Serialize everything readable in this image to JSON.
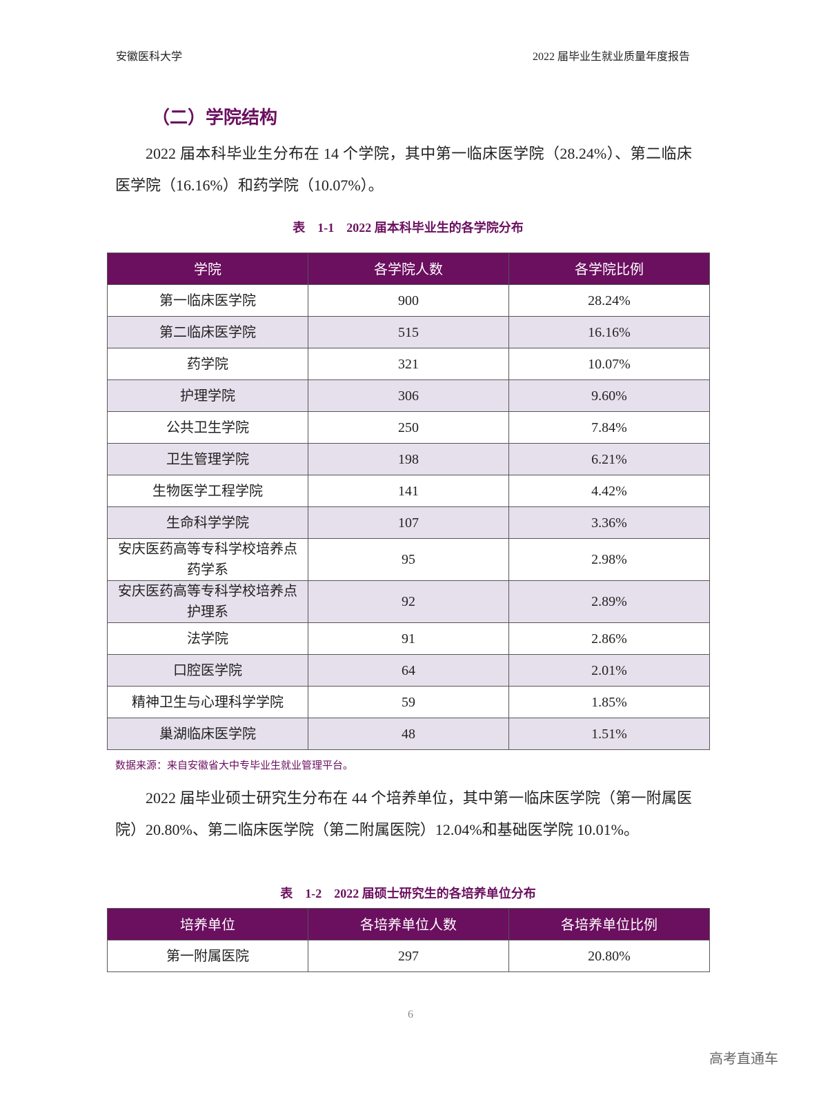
{
  "header": {
    "left": "安徽医科大学",
    "right": "2022 届毕业生就业质量年度报告"
  },
  "section_title": "（二）学院结构",
  "paragraphs": [
    "2022 届本科毕业生分布在 14 个学院，其中第一临床医学院（28.24%）、第二临床医学院（16.16%）和药学院（10.07%）。",
    "2022 届毕业硕士研究生分布在 44 个培养单位，其中第一临床医学院（第一附属医院）20.80%、第二临床医学院（第二附属医院）12.04%和基础医学院 10.01%。"
  ],
  "tables": [
    {
      "caption": "表　1-1　2022 届本科毕业生的各学院分布",
      "columns": [
        "学院",
        "各学院人数",
        "各学院比例"
      ],
      "rows": [
        [
          "第一临床医学院",
          "900",
          "28.24%"
        ],
        [
          "第二临床医学院",
          "515",
          "16.16%"
        ],
        [
          "药学院",
          "321",
          "10.07%"
        ],
        [
          "护理学院",
          "306",
          "9.60%"
        ],
        [
          "公共卫生学院",
          "250",
          "7.84%"
        ],
        [
          "卫生管理学院",
          "198",
          "6.21%"
        ],
        [
          "生物医学工程学院",
          "141",
          "4.42%"
        ],
        [
          "生命科学学院",
          "107",
          "3.36%"
        ],
        [
          "安庆医药高等专科学校培养点药学系",
          "95",
          "2.98%"
        ],
        [
          "安庆医药高等专科学校培养点护理系",
          "92",
          "2.89%"
        ],
        [
          "法学院",
          "91",
          "2.86%"
        ],
        [
          "口腔医学院",
          "64",
          "2.01%"
        ],
        [
          "精神卫生与心理科学学院",
          "59",
          "1.85%"
        ],
        [
          "巢湖临床医学院",
          "48",
          "1.51%"
        ]
      ],
      "source": "数据来源：来自安徽省大中专毕业生就业管理平台。"
    },
    {
      "caption": "表　1-2　2022 届硕士研究生的各培养单位分布",
      "columns": [
        "培养单位",
        "各培养单位人数",
        "各培养单位比例"
      ],
      "rows": [
        [
          "第一附属医院",
          "297",
          "20.80%"
        ]
      ]
    }
  ],
  "page_number": "6",
  "watermark": "高考直通车"
}
